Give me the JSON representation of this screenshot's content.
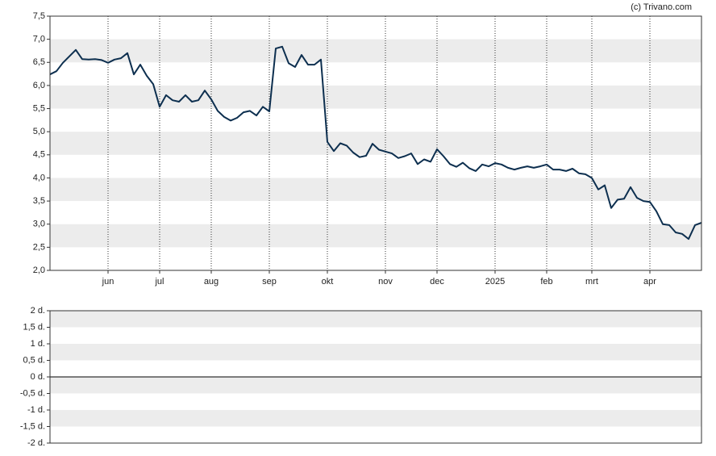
{
  "chart_data": [
    {
      "type": "line",
      "annotation": "(c) Trivano.com",
      "color": "#0d2f4f",
      "categories": [
        null,
        null,
        null,
        null,
        null,
        null,
        null,
        null,
        null,
        "jun",
        null,
        null,
        null,
        null,
        null,
        null,
        null,
        "jul",
        null,
        null,
        null,
        null,
        null,
        null,
        null,
        "aug",
        null,
        null,
        null,
        null,
        null,
        null,
        null,
        null,
        "sep",
        null,
        null,
        null,
        null,
        null,
        null,
        null,
        null,
        "okt",
        null,
        null,
        null,
        null,
        null,
        null,
        null,
        null,
        "nov",
        null,
        null,
        null,
        null,
        null,
        null,
        null,
        "dec",
        null,
        null,
        null,
        null,
        null,
        null,
        null,
        null,
        "2025",
        null,
        null,
        null,
        null,
        null,
        null,
        null,
        "feb",
        null,
        null,
        null,
        null,
        null,
        null,
        "mrt",
        null,
        null,
        null,
        null,
        null,
        null,
        null,
        null,
        "apr",
        null,
        null,
        null,
        null,
        null,
        null,
        null,
        null
      ],
      "values": [
        6.24,
        6.31,
        6.49,
        6.63,
        6.77,
        6.57,
        6.56,
        6.57,
        6.55,
        6.49,
        6.56,
        6.59,
        6.7,
        6.24,
        6.45,
        6.21,
        6.03,
        5.54,
        5.79,
        5.68,
        5.65,
        5.79,
        5.65,
        5.68,
        5.89,
        5.7,
        5.45,
        5.32,
        5.24,
        5.3,
        5.42,
        5.45,
        5.35,
        5.54,
        5.44,
        6.8,
        6.84,
        6.48,
        6.4,
        6.66,
        6.45,
        6.45,
        6.56,
        4.78,
        4.58,
        4.75,
        4.7,
        4.55,
        4.45,
        4.48,
        4.74,
        4.61,
        4.57,
        4.53,
        4.43,
        4.47,
        4.53,
        4.3,
        4.4,
        4.35,
        4.62,
        4.47,
        4.3,
        4.24,
        4.33,
        4.21,
        4.15,
        4.29,
        4.25,
        4.32,
        4.29,
        4.22,
        4.18,
        4.22,
        4.25,
        4.22,
        4.25,
        4.29,
        4.18,
        4.18,
        4.15,
        4.2,
        4.1,
        4.08,
        4.0,
        3.75,
        3.84,
        3.35,
        3.53,
        3.55,
        3.8,
        3.57,
        3.5,
        3.48,
        3.28,
        3.0,
        2.98,
        2.82,
        2.79,
        2.68,
        2.98,
        3.03
      ],
      "ylim": [
        2.0,
        7.5
      ],
      "yticks": [
        {
          "value": 2.0,
          "label": "2,0"
        },
        {
          "value": 2.5,
          "label": "2,5"
        },
        {
          "value": 3.0,
          "label": "3,0"
        },
        {
          "value": 3.5,
          "label": "3,5"
        },
        {
          "value": 4.0,
          "label": "4,0"
        },
        {
          "value": 4.5,
          "label": "4,5"
        },
        {
          "value": 5.0,
          "label": "5,0"
        },
        {
          "value": 5.5,
          "label": "5,5"
        },
        {
          "value": 6.0,
          "label": "6,0"
        },
        {
          "value": 6.5,
          "label": "6,5"
        },
        {
          "value": 7.0,
          "label": "7,0"
        },
        {
          "value": 7.5,
          "label": "7,5"
        }
      ]
    },
    {
      "type": "bar",
      "ylim": [
        -2,
        2
      ],
      "yticks": [
        {
          "value": -2,
          "label": "-2 d."
        },
        {
          "value": -1.5,
          "label": "-1,5 d."
        },
        {
          "value": -1,
          "label": "-1 d."
        },
        {
          "value": -0.5,
          "label": "-0,5 d."
        },
        {
          "value": 0,
          "label": "0 d."
        },
        {
          "value": 0.5,
          "label": "0,5 d."
        },
        {
          "value": 1,
          "label": "1 d."
        },
        {
          "value": 1.5,
          "label": "1,5 d."
        },
        {
          "value": 2,
          "label": "2 d."
        }
      ]
    }
  ]
}
